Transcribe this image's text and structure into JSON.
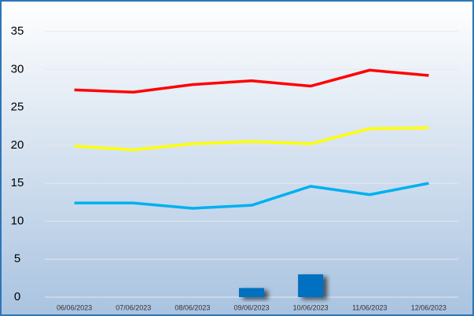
{
  "chart_data": {
    "type": "line",
    "categories": [
      "06/06/2023",
      "07/06/2023",
      "08/06/2023",
      "09/06/2023",
      "10/06/2023",
      "11/06/2023",
      "12/06/2023"
    ],
    "series": [
      {
        "type": "bar",
        "color": "#0070c0",
        "values": [
          null,
          null,
          null,
          1.2,
          3.0,
          null,
          null
        ]
      },
      {
        "type": "line",
        "color": "#ff0000",
        "values": [
          27.3,
          27.0,
          28.0,
          28.5,
          27.8,
          29.9,
          29.2
        ]
      },
      {
        "type": "line",
        "color": "#ffff00",
        "values": [
          19.9,
          19.4,
          20.2,
          20.5,
          20.2,
          22.2,
          22.3
        ]
      },
      {
        "type": "line",
        "color": "#00b0f0",
        "values": [
          12.4,
          12.4,
          11.7,
          12.1,
          14.6,
          13.5,
          15.0
        ]
      }
    ],
    "ylim": [
      0,
      35
    ],
    "yticks": [
      0,
      5,
      10,
      15,
      20,
      25,
      30,
      35
    ],
    "grid": true
  }
}
